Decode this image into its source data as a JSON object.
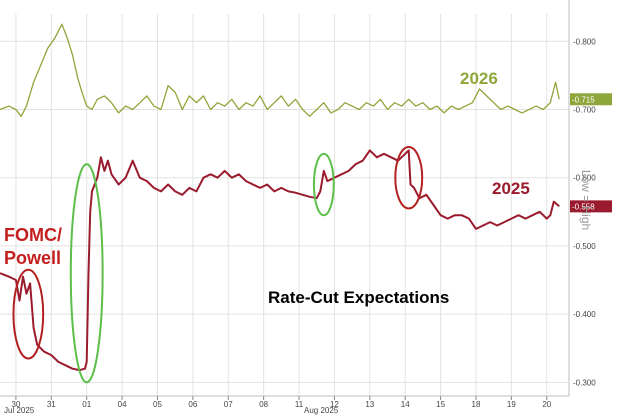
{
  "chart_data": {
    "type": "line",
    "title": "Rate-Cut Expectations",
    "y_axis_label": "Low = High",
    "y_axis": {
      "min": 0.28,
      "max": 0.84,
      "reversed": true,
      "side": "right",
      "ticks": [
        -0.8,
        -0.7,
        -0.6,
        -0.5,
        -0.4,
        -0.3
      ],
      "tick_labels": [
        "-0.800",
        "-0.700",
        "-0.600",
        "-0.500",
        "-0.400",
        "-0.300"
      ]
    },
    "x_axis": {
      "tick_labels": [
        "30",
        "31",
        "01",
        "04",
        "05",
        "06",
        "07",
        "08",
        "11",
        "12",
        "13",
        "14",
        "15",
        "18",
        "19",
        "20"
      ],
      "tick_positions": [
        0,
        1,
        2,
        3,
        4,
        5,
        6,
        7,
        8,
        9,
        10,
        11,
        12,
        13,
        14,
        15
      ],
      "period_labels": [
        {
          "label": "Jul 2025",
          "at": 0
        },
        {
          "label": "Aug 2025",
          "at": 8.5
        }
      ],
      "range": [
        -0.45,
        15.6
      ]
    },
    "grid": true,
    "series": [
      {
        "name": "2026",
        "color": "#8fa63a",
        "last_value_label": "-0.715",
        "points": [
          [
            -0.45,
            0.7
          ],
          [
            -0.2,
            0.705
          ],
          [
            0,
            0.7
          ],
          [
            0.15,
            0.69
          ],
          [
            0.3,
            0.705
          ],
          [
            0.5,
            0.74
          ],
          [
            0.7,
            0.765
          ],
          [
            0.9,
            0.79
          ],
          [
            1.1,
            0.805
          ],
          [
            1.3,
            0.825
          ],
          [
            1.45,
            0.805
          ],
          [
            1.6,
            0.78
          ],
          [
            1.75,
            0.745
          ],
          [
            1.9,
            0.72
          ],
          [
            2.0,
            0.705
          ],
          [
            2.15,
            0.7
          ],
          [
            2.3,
            0.715
          ],
          [
            2.5,
            0.72
          ],
          [
            2.7,
            0.71
          ],
          [
            2.9,
            0.695
          ],
          [
            3.1,
            0.705
          ],
          [
            3.3,
            0.7
          ],
          [
            3.5,
            0.71
          ],
          [
            3.7,
            0.72
          ],
          [
            3.9,
            0.705
          ],
          [
            4.1,
            0.7
          ],
          [
            4.3,
            0.735
          ],
          [
            4.5,
            0.725
          ],
          [
            4.7,
            0.7
          ],
          [
            4.9,
            0.72
          ],
          [
            5.1,
            0.71
          ],
          [
            5.3,
            0.72
          ],
          [
            5.5,
            0.7
          ],
          [
            5.7,
            0.71
          ],
          [
            5.9,
            0.705
          ],
          [
            6.1,
            0.715
          ],
          [
            6.3,
            0.7
          ],
          [
            6.5,
            0.71
          ],
          [
            6.7,
            0.705
          ],
          [
            6.9,
            0.72
          ],
          [
            7.1,
            0.7
          ],
          [
            7.3,
            0.71
          ],
          [
            7.5,
            0.72
          ],
          [
            7.7,
            0.705
          ],
          [
            7.9,
            0.715
          ],
          [
            8.1,
            0.7
          ],
          [
            8.3,
            0.69
          ],
          [
            8.5,
            0.7
          ],
          [
            8.7,
            0.71
          ],
          [
            8.9,
            0.695
          ],
          [
            9.1,
            0.7
          ],
          [
            9.3,
            0.71
          ],
          [
            9.5,
            0.705
          ],
          [
            9.7,
            0.7
          ],
          [
            9.9,
            0.71
          ],
          [
            10.1,
            0.705
          ],
          [
            10.3,
            0.715
          ],
          [
            10.5,
            0.7
          ],
          [
            10.7,
            0.71
          ],
          [
            10.9,
            0.705
          ],
          [
            11.1,
            0.715
          ],
          [
            11.3,
            0.705
          ],
          [
            11.5,
            0.71
          ],
          [
            11.7,
            0.7
          ],
          [
            11.9,
            0.705
          ],
          [
            12.1,
            0.695
          ],
          [
            12.3,
            0.705
          ],
          [
            12.5,
            0.7
          ],
          [
            12.7,
            0.705
          ],
          [
            12.9,
            0.71
          ],
          [
            13.1,
            0.73
          ],
          [
            13.3,
            0.72
          ],
          [
            13.5,
            0.71
          ],
          [
            13.7,
            0.7
          ],
          [
            13.9,
            0.705
          ],
          [
            14.1,
            0.7
          ],
          [
            14.3,
            0.695
          ],
          [
            14.5,
            0.7
          ],
          [
            14.7,
            0.705
          ],
          [
            14.9,
            0.7
          ],
          [
            15.1,
            0.71
          ],
          [
            15.25,
            0.74
          ],
          [
            15.35,
            0.715
          ]
        ]
      },
      {
        "name": "2025",
        "color": "#9b1b2e",
        "last_value_label": "-0.558",
        "points": [
          [
            -0.45,
            0.46
          ],
          [
            -0.2,
            0.455
          ],
          [
            0,
            0.45
          ],
          [
            0.1,
            0.42
          ],
          [
            0.2,
            0.455
          ],
          [
            0.3,
            0.43
          ],
          [
            0.4,
            0.445
          ],
          [
            0.5,
            0.38
          ],
          [
            0.6,
            0.355
          ],
          [
            0.8,
            0.345
          ],
          [
            1.0,
            0.34
          ],
          [
            1.2,
            0.33
          ],
          [
            1.4,
            0.325
          ],
          [
            1.6,
            0.32
          ],
          [
            1.8,
            0.318
          ],
          [
            1.95,
            0.32
          ],
          [
            2.0,
            0.33
          ],
          [
            2.05,
            0.46
          ],
          [
            2.1,
            0.55
          ],
          [
            2.15,
            0.58
          ],
          [
            2.3,
            0.6
          ],
          [
            2.4,
            0.63
          ],
          [
            2.5,
            0.61
          ],
          [
            2.6,
            0.625
          ],
          [
            2.7,
            0.605
          ],
          [
            2.9,
            0.59
          ],
          [
            3.1,
            0.6
          ],
          [
            3.3,
            0.625
          ],
          [
            3.5,
            0.6
          ],
          [
            3.7,
            0.595
          ],
          [
            3.9,
            0.585
          ],
          [
            4.1,
            0.58
          ],
          [
            4.3,
            0.59
          ],
          [
            4.5,
            0.58
          ],
          [
            4.7,
            0.575
          ],
          [
            4.9,
            0.585
          ],
          [
            5.1,
            0.58
          ],
          [
            5.3,
            0.6
          ],
          [
            5.5,
            0.605
          ],
          [
            5.7,
            0.6
          ],
          [
            5.9,
            0.61
          ],
          [
            6.1,
            0.6
          ],
          [
            6.3,
            0.605
          ],
          [
            6.5,
            0.595
          ],
          [
            6.7,
            0.59
          ],
          [
            6.9,
            0.585
          ],
          [
            7.1,
            0.59
          ],
          [
            7.3,
            0.58
          ],
          [
            7.5,
            0.585
          ],
          [
            7.7,
            0.58
          ],
          [
            7.9,
            0.578
          ],
          [
            8.1,
            0.575
          ],
          [
            8.3,
            0.572
          ],
          [
            8.5,
            0.57
          ],
          [
            8.6,
            0.58
          ],
          [
            8.7,
            0.61
          ],
          [
            8.8,
            0.595
          ],
          [
            9.0,
            0.6
          ],
          [
            9.2,
            0.605
          ],
          [
            9.4,
            0.61
          ],
          [
            9.6,
            0.62
          ],
          [
            9.8,
            0.625
          ],
          [
            10.0,
            0.64
          ],
          [
            10.2,
            0.63
          ],
          [
            10.4,
            0.635
          ],
          [
            10.6,
            0.63
          ],
          [
            10.8,
            0.625
          ],
          [
            11.0,
            0.635
          ],
          [
            11.1,
            0.64
          ],
          [
            11.15,
            0.59
          ],
          [
            11.25,
            0.585
          ],
          [
            11.4,
            0.57
          ],
          [
            11.6,
            0.575
          ],
          [
            11.8,
            0.56
          ],
          [
            12.0,
            0.545
          ],
          [
            12.2,
            0.54
          ],
          [
            12.4,
            0.545
          ],
          [
            12.6,
            0.545
          ],
          [
            12.8,
            0.54
          ],
          [
            13.0,
            0.525
          ],
          [
            13.2,
            0.53
          ],
          [
            13.4,
            0.535
          ],
          [
            13.6,
            0.53
          ],
          [
            13.8,
            0.535
          ],
          [
            14.0,
            0.54
          ],
          [
            14.2,
            0.545
          ],
          [
            14.4,
            0.54
          ],
          [
            14.6,
            0.545
          ],
          [
            14.8,
            0.55
          ],
          [
            15.0,
            0.54
          ],
          [
            15.1,
            0.545
          ],
          [
            15.2,
            0.565
          ],
          [
            15.35,
            0.558
          ]
        ]
      }
    ],
    "annotations": {
      "series_labels": [
        {
          "text": "2026",
          "color": "#8fa63a"
        },
        {
          "text": "2025",
          "color": "#9b1b2e"
        }
      ],
      "event_label_lines": [
        "FOMC/",
        "Powell"
      ],
      "event_label_color": "#c41e1e",
      "title_color": "#000000",
      "ellipses": [
        {
          "color": "#b32020",
          "center_x": 0.35,
          "center_y": 0.4,
          "half_width_x": 0.42,
          "half_height_y": 0.065
        },
        {
          "color": "#5cbf4a",
          "center_x": 2.0,
          "center_y": 0.46,
          "half_width_x": 0.45,
          "half_height_y": 0.16
        },
        {
          "color": "#5cbf4a",
          "center_x": 8.7,
          "center_y": 0.59,
          "half_width_x": 0.28,
          "half_height_y": 0.045
        },
        {
          "color": "#b32020",
          "center_x": 11.1,
          "center_y": 0.6,
          "half_width_x": 0.38,
          "half_height_y": 0.045
        }
      ]
    }
  }
}
